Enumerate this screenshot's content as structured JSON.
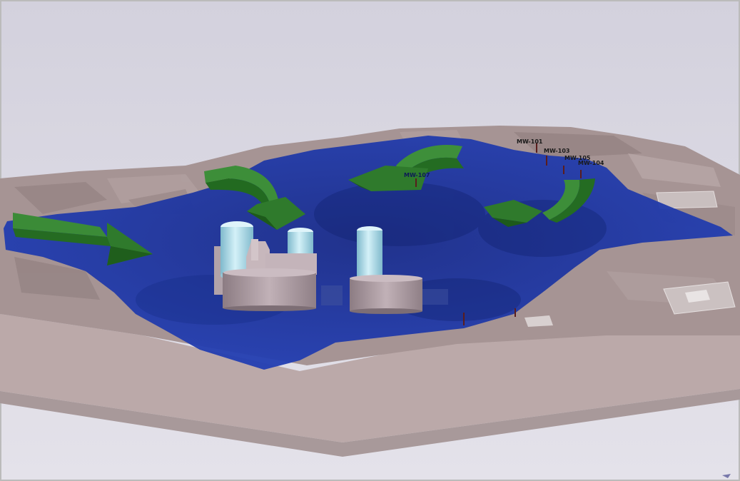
{
  "colors": {
    "sky": "#d7d5e1",
    "terrain": "#a59191",
    "ground_plane": "#b9a9a9",
    "groundwater": "#1f3aa8",
    "flow_arrow": "#2f7a2c",
    "tank": "#b9e2ee",
    "building": "#a9979e"
  },
  "wells": {
    "mw101": "MW-101",
    "mw103": "MW-103",
    "mw105": "MW-105",
    "mw104": "MW-104",
    "mw107": "MW-107"
  }
}
